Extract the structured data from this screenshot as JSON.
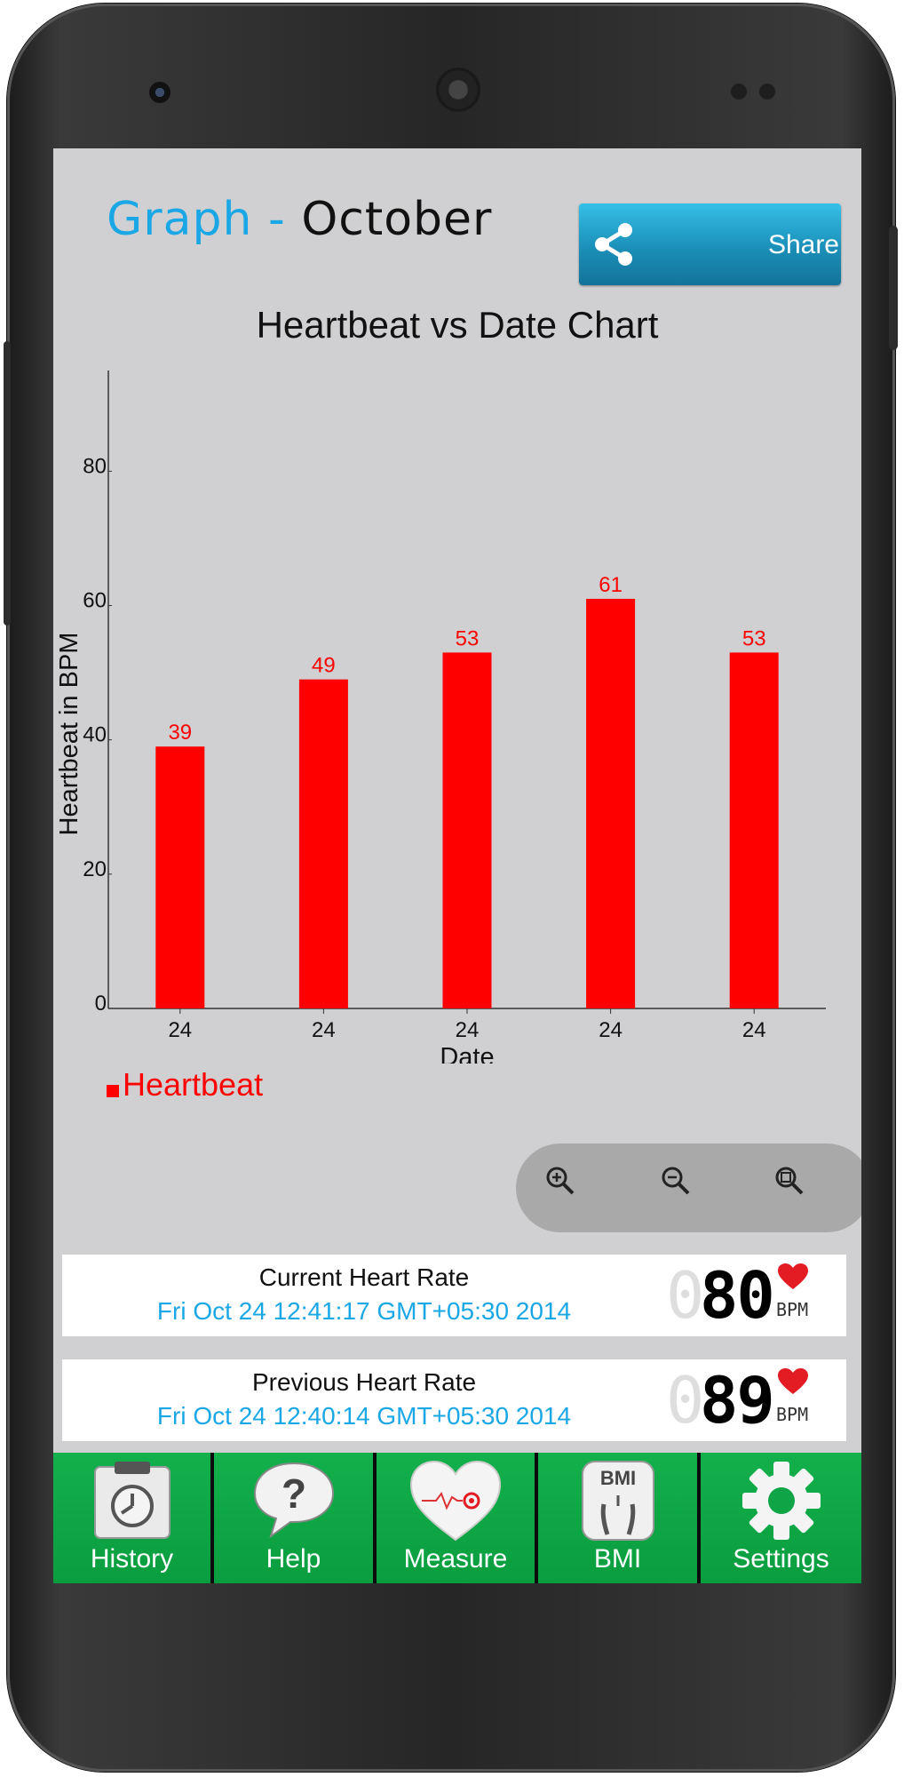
{
  "header": {
    "title_lead": "Graph - ",
    "title_month": "October",
    "share_label": "Share"
  },
  "chart_data": {
    "type": "bar",
    "title": "Heartbeat vs Date Chart",
    "xlabel": "Date",
    "ylabel": "Heartbeat in BPM",
    "categories": [
      "24",
      "24",
      "24",
      "24",
      "24"
    ],
    "series": [
      {
        "name": "Heartbeat",
        "values": [
          39,
          49,
          53,
          61,
          53
        ],
        "color": "#ff0000"
      }
    ],
    "yticks": [
      0,
      20,
      40,
      60,
      80
    ],
    "ylim": [
      0,
      95
    ],
    "grid": false,
    "legend": "bottom-left"
  },
  "zoom": {
    "controls": [
      "zoom-in",
      "zoom-out",
      "zoom-reset"
    ]
  },
  "current": {
    "title": "Current Heart Rate",
    "time": "Fri Oct 24 12:41:17 GMT+05:30 2014",
    "ghost": "0",
    "value": "80",
    "unit": "BPM"
  },
  "previous": {
    "title": "Previous Heart Rate",
    "time": "Fri Oct 24 12:40:14 GMT+05:30 2014",
    "ghost": "0",
    "value": "89",
    "unit": "BPM"
  },
  "nav": {
    "history": "History",
    "help": "Help",
    "measure": "Measure",
    "bmi": "BMI",
    "bmi_icon_text": "BMI",
    "settings": "Settings"
  },
  "colors": {
    "accent": "#1aa7e6",
    "bar": "#ff0000",
    "nav_green": "#13b04c"
  }
}
